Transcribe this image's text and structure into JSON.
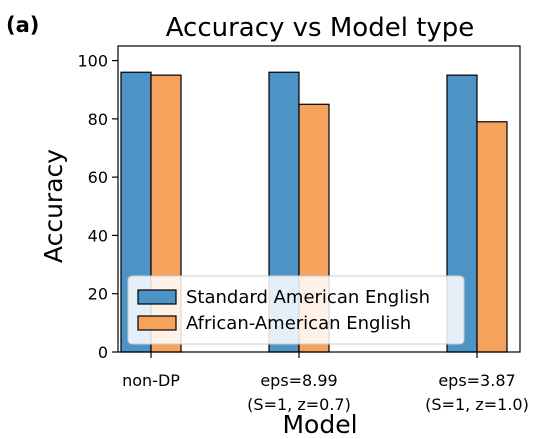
{
  "panel_label": "(a)",
  "chart_data": {
    "type": "bar",
    "title": "Accuracy vs Model type",
    "xlabel": "Model",
    "ylabel": "Accuracy",
    "ylim": [
      0,
      105
    ],
    "yticks": [
      0,
      20,
      40,
      60,
      80,
      100
    ],
    "categories": [
      [
        "non-DP"
      ],
      [
        "eps=8.99",
        "(S=1, z=0.7)"
      ],
      [
        "eps=3.87",
        "(S=1, z=1.0)"
      ]
    ],
    "series": [
      {
        "name": "Standard American English",
        "color": "#4d93c6",
        "values": [
          96,
          96,
          95
        ]
      },
      {
        "name": "African-American English",
        "color": "#f5a25d",
        "values": [
          95,
          85,
          79
        ]
      }
    ],
    "legend_position": "lower-left",
    "grid": false
  }
}
